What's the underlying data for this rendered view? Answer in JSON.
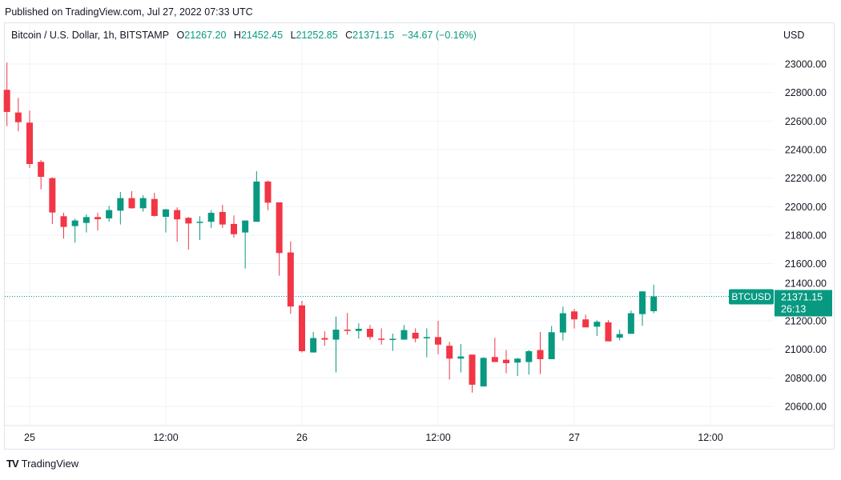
{
  "header": {
    "published": "Published on TradingView.com, Jul 27, 2022 07:33 UTC"
  },
  "legend": {
    "symbol": "Bitcoin / U.S. Dollar, 1h, BITSTAMP",
    "o_label": "O",
    "o": "21267.20",
    "h_label": "H",
    "h": "21452.45",
    "l_label": "L",
    "l": "21252.85",
    "c_label": "C",
    "c": "21371.15",
    "change": "−34.67 (−0.16%)"
  },
  "currency": "USD",
  "footer": {
    "brand": "TradingView",
    "logo_text": "TV"
  },
  "colors": {
    "up": "#089981",
    "down": "#f23645",
    "grid": "#f0f3fa",
    "text": "#131722"
  },
  "chart_data": {
    "type": "candlestick",
    "title": "Bitcoin / U.S. Dollar, 1h, BITSTAMP",
    "interval": "1h",
    "start": "2022-07-24 22:00",
    "ylim": [
      20520,
      23100
    ],
    "y_ticks": [
      "23000.00",
      "22800.00",
      "22600.00",
      "22400.00",
      "22200.00",
      "22000.00",
      "21800.00",
      "21600.00",
      "21400.00",
      "21200.00",
      "21000.00",
      "20800.00",
      "20600.00"
    ],
    "x_ticks": [
      {
        "label": "25",
        "hours": 0
      },
      {
        "label": "12:00",
        "hours": 12
      },
      {
        "label": "26",
        "hours": 24
      },
      {
        "label": "12:00",
        "hours": 36
      },
      {
        "label": "27",
        "hours": 48
      },
      {
        "label": "12:00",
        "hours": 60
      }
    ],
    "grid": true,
    "open": [
      22819,
      22660,
      22589,
      22314,
      22200,
      21933,
      21864,
      21886,
      21927,
      21918,
      21972,
      22060,
      21989,
      22054,
      21929,
      21976,
      21922,
      21888,
      21894,
      21963,
      21879,
      21819,
      21894,
      22176,
      22030,
      21679,
      21308,
      20978,
      21079,
      21068,
      21138,
      21129,
      21144,
      21075,
      21068,
      21068,
      21116,
      21077,
      21086,
      21025,
      20935,
      20963,
      20740,
      20946,
      20927,
      20907,
      20911,
      20995,
      20931,
      21118,
      21266,
      21210,
      21159,
      21189,
      21082,
      21109,
      21247,
      21267.2
    ],
    "high": [
      23010,
      22763,
      22673,
      22327,
      22206,
      21957,
      21916,
      21946,
      21957,
      22006,
      22103,
      22109,
      22080,
      22097,
      21985,
      21995,
      21927,
      21933,
      21976,
      22013,
      21939,
      21903,
      22249,
      22183,
      22030,
      21757,
      21340,
      21122,
      21127,
      21230,
      21255,
      21183,
      21172,
      21147,
      21110,
      21170,
      21147,
      21147,
      21200,
      21053,
      21038,
      20963,
      20945,
      21081,
      20995,
      20940,
      20995,
      21122,
      21163,
      21300,
      21284,
      21243,
      21204,
      21204,
      21138,
      21272,
      21406,
      21452.45
    ],
    "low": [
      22564,
      22529,
      22271,
      22121,
      21879,
      21776,
      21748,
      21819,
      21832,
      21894,
      21875,
      21985,
      21965,
      21930,
      21819,
      21754,
      21699,
      21766,
      21850,
      21850,
      21783,
      21566,
      21894,
      21976,
      21516,
      21249,
      20978,
      20978,
      21025,
      20838,
      21103,
      21075,
      21068,
      21033,
      20989,
      21068,
      21049,
      20944,
      20965,
      20789,
      20838,
      20697,
      20740,
      20911,
      20832,
      20813,
      20823,
      20827,
      20931,
      21062,
      21146,
      21154,
      21094,
      21056,
      21064,
      21109,
      21165,
      21252.85
    ],
    "close": [
      22664,
      22592,
      22299,
      22209,
      21959,
      21858,
      21903,
      21927,
      21912,
      21976,
      22060,
      21989,
      22060,
      21935,
      21981,
      21911,
      21882,
      21894,
      21957,
      21875,
      21807,
      21903,
      22176,
      22028,
      21675,
      21300,
      20987,
      21079,
      21068,
      21138,
      21129,
      21144,
      21086,
      21068,
      21074,
      21135,
      21075,
      21086,
      21033,
      20935,
      20950,
      20752,
      20940,
      20911,
      20903,
      20935,
      20987,
      20931,
      21120,
      21253,
      21210,
      21154,
      21193,
      21056,
      21107,
      21253,
      21406,
      21371.15
    ],
    "last_price": {
      "symbol": "BTCUSD",
      "value": "21371.15",
      "countdown": "26:13"
    }
  }
}
